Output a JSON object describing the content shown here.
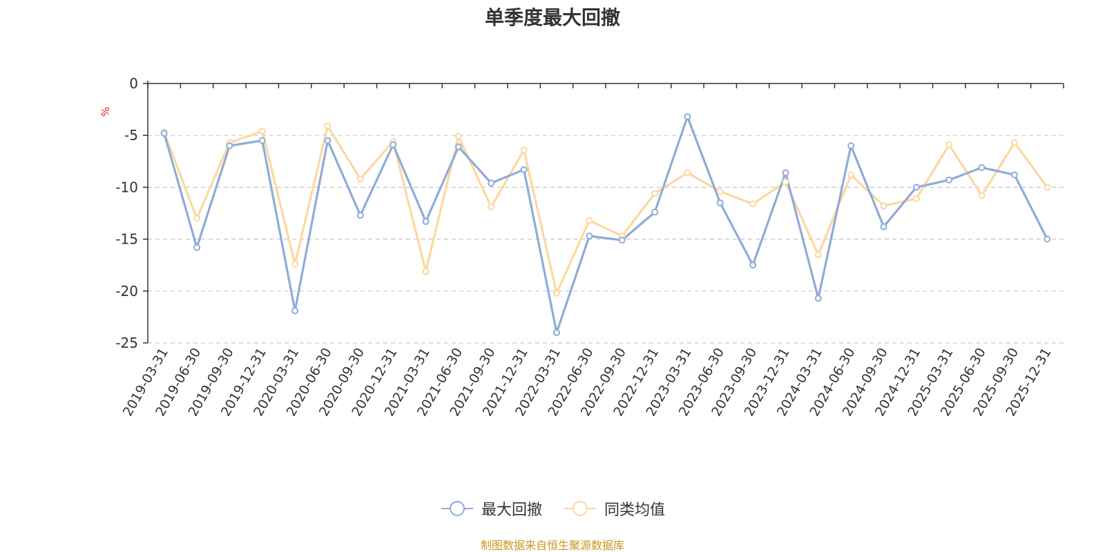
{
  "chart_data": {
    "type": "line",
    "title": "单季度最大回撤",
    "ylabel": "%",
    "ylim": [
      -25,
      0
    ],
    "yticks": [
      0,
      -5,
      -10,
      -15,
      -20,
      -25
    ],
    "grid": true,
    "legend_position": "bottom-center",
    "categories": [
      "2019-03-31",
      "2019-06-30",
      "2019-09-30",
      "2019-12-31",
      "2020-03-31",
      "2020-06-30",
      "2020-09-30",
      "2020-12-31",
      "2021-03-31",
      "2021-06-30",
      "2021-09-30",
      "2021-12-31",
      "2022-03-31",
      "2022-06-30",
      "2022-09-30",
      "2022-12-31",
      "2023-03-31",
      "2023-06-30",
      "2023-09-30",
      "2023-12-31",
      "2024-03-31",
      "2024-06-30",
      "2024-09-30",
      "2024-12-31",
      "2025-03-31",
      "2025-06-30",
      "2025-09-30",
      "2025-12-31"
    ],
    "series": [
      {
        "name": "最大回撤",
        "color": "#8eabd8",
        "values": [
          -4.8,
          -15.8,
          -6.0,
          -5.5,
          -21.9,
          -5.5,
          -12.7,
          -5.9,
          -13.3,
          -6.1,
          -9.6,
          -8.3,
          -24.0,
          -14.7,
          -15.1,
          -12.4,
          -3.2,
          -11.5,
          -17.5,
          -8.6,
          -20.7,
          -6.0,
          -13.8,
          -10.0,
          -9.3,
          -8.1,
          -8.8,
          -15.0
        ]
      },
      {
        "name": "同类均值",
        "color": "#fcd89e",
        "values": [
          -4.7,
          -13.0,
          -5.7,
          -4.6,
          -17.4,
          -4.1,
          -9.2,
          -5.6,
          -18.1,
          -5.1,
          -11.9,
          -6.4,
          -20.2,
          -13.2,
          -14.7,
          -10.6,
          -8.6,
          -10.4,
          -11.6,
          -9.5,
          -16.5,
          -8.8,
          -11.8,
          -11.1,
          -5.9,
          -10.8,
          -5.7,
          -10.0
        ]
      }
    ]
  },
  "legend": {
    "series1": "最大回撤",
    "series2": "同类均值"
  },
  "source_note": "制图数据来自恒生聚源数据库"
}
